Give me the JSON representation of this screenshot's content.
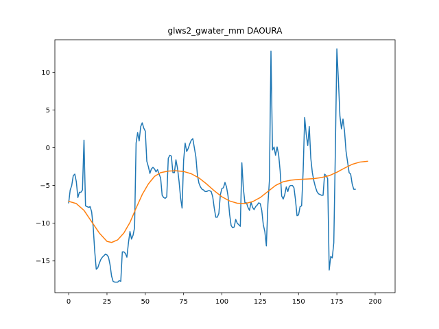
{
  "chart_data": {
    "type": "line",
    "title": "glws2_gwater_mm DAOURA",
    "xlabel": "",
    "ylabel": "",
    "xlim": [
      -9,
      213
    ],
    "ylim": [
      -19.2,
      14.3
    ],
    "x_ticks": [
      0,
      25,
      50,
      75,
      100,
      125,
      150,
      175,
      200
    ],
    "y_ticks": [
      -15,
      -10,
      -5,
      0,
      5,
      10
    ],
    "grid": false,
    "series": [
      {
        "color": "#1f77b4",
        "points": [
          [
            0,
            -7.3
          ],
          [
            1,
            -5.6
          ],
          [
            2,
            -5
          ],
          [
            3,
            -3.7
          ],
          [
            4,
            -3.5
          ],
          [
            5,
            -4.5
          ],
          [
            6,
            -6.6
          ],
          [
            7,
            -5.9
          ],
          [
            8,
            -5.9
          ],
          [
            9,
            -5.6
          ],
          [
            10,
            1
          ],
          [
            11,
            -7.7
          ],
          [
            12,
            -7.8
          ],
          [
            13,
            -7.9
          ],
          [
            14,
            -7.8
          ],
          [
            15,
            -8.5
          ],
          [
            16,
            -10.5
          ],
          [
            17,
            -13.7
          ],
          [
            18,
            -16.1
          ],
          [
            19,
            -15.9
          ],
          [
            20,
            -15.3
          ],
          [
            21,
            -14.8
          ],
          [
            22,
            -14.5
          ],
          [
            23,
            -14.3
          ],
          [
            24,
            -14.1
          ],
          [
            25,
            -14.2
          ],
          [
            26,
            -14.5
          ],
          [
            27,
            -15.5
          ],
          [
            28,
            -17
          ],
          [
            29,
            -17.7
          ],
          [
            30,
            -17.8
          ],
          [
            31,
            -17.8
          ],
          [
            32,
            -17.8
          ],
          [
            33,
            -17.6
          ],
          [
            34,
            -17.7
          ],
          [
            35,
            -13.8
          ],
          [
            36,
            -13.8
          ],
          [
            37,
            -14
          ],
          [
            38,
            -14.5
          ],
          [
            39,
            -12.6
          ],
          [
            40,
            -11.1
          ],
          [
            41,
            -12.1
          ],
          [
            42,
            -11.6
          ],
          [
            43,
            -10.6
          ],
          [
            44,
            0.6
          ],
          [
            45,
            2
          ],
          [
            46,
            0.9
          ],
          [
            47,
            2.8
          ],
          [
            48,
            3.3
          ],
          [
            49,
            2.6
          ],
          [
            50,
            2.2
          ],
          [
            51,
            -1.8
          ],
          [
            52,
            -2.5
          ],
          [
            53,
            -3.4
          ],
          [
            54,
            -2.8
          ],
          [
            55,
            -2.6
          ],
          [
            56,
            -2.8
          ],
          [
            57,
            -3.2
          ],
          [
            58,
            -2.9
          ],
          [
            59,
            -3.5
          ],
          [
            60,
            -4
          ],
          [
            61,
            -6.3
          ],
          [
            62,
            -6.6
          ],
          [
            63,
            -6.7
          ],
          [
            64,
            -6.5
          ],
          [
            65,
            -1.4
          ],
          [
            66,
            -1
          ],
          [
            67,
            -1.1
          ],
          [
            68,
            -3.3
          ],
          [
            69,
            -3.3
          ],
          [
            70,
            -1.6
          ],
          [
            71,
            -2.7
          ],
          [
            72,
            -4.4
          ],
          [
            73,
            -6.6
          ],
          [
            74,
            -8
          ],
          [
            75,
            -1.7
          ],
          [
            76,
            0.6
          ],
          [
            77,
            -0.5
          ],
          [
            78,
            -0.1
          ],
          [
            79,
            0.5
          ],
          [
            80,
            1
          ],
          [
            81,
            1.2
          ],
          [
            82,
            0
          ],
          [
            83,
            -1.2
          ],
          [
            84,
            -3.6
          ],
          [
            85,
            -4.7
          ],
          [
            86,
            -5.2
          ],
          [
            87,
            -5.5
          ],
          [
            88,
            -5.6
          ],
          [
            89,
            -5.8
          ],
          [
            90,
            -5.8
          ],
          [
            91,
            -5.7
          ],
          [
            92,
            -5.7
          ],
          [
            93,
            -5.8
          ],
          [
            94,
            -6.5
          ],
          [
            95,
            -8
          ],
          [
            96,
            -9.2
          ],
          [
            97,
            -9.2
          ],
          [
            98,
            -8.7
          ],
          [
            99,
            -6.2
          ],
          [
            100,
            -5.4
          ],
          [
            101,
            -5.3
          ],
          [
            102,
            -4.6
          ],
          [
            103,
            -5.2
          ],
          [
            104,
            -6.4
          ],
          [
            105,
            -8.8
          ],
          [
            106,
            -10.3
          ],
          [
            107,
            -10.6
          ],
          [
            108,
            -10.5
          ],
          [
            109,
            -9.5
          ],
          [
            110,
            -10
          ],
          [
            111,
            -10.2
          ],
          [
            112,
            -10.4
          ],
          [
            113,
            -2
          ],
          [
            114,
            -5.4
          ],
          [
            115,
            -7.3
          ],
          [
            116,
            -7.3
          ],
          [
            117,
            -7.9
          ],
          [
            118,
            -8.3
          ],
          [
            119,
            -7.2
          ],
          [
            120,
            -7.9
          ],
          [
            121,
            -8.2
          ],
          [
            122,
            -7.8
          ],
          [
            123,
            -7.6
          ],
          [
            124,
            -7.3
          ],
          [
            125,
            -7.4
          ],
          [
            126,
            -8.3
          ],
          [
            127,
            -10.2
          ],
          [
            128,
            -11.1
          ],
          [
            129,
            -13
          ],
          [
            130,
            -7.5
          ],
          [
            131,
            -4.3
          ],
          [
            132,
            12.8
          ],
          [
            133,
            -0.3
          ],
          [
            134,
            0.1
          ],
          [
            135,
            -1
          ],
          [
            136,
            0.1
          ],
          [
            137,
            -0.9
          ],
          [
            138,
            -3.1
          ],
          [
            139,
            -6.4
          ],
          [
            140,
            -6.8
          ],
          [
            141,
            -6.2
          ],
          [
            142,
            -5.2
          ],
          [
            143,
            -5.8
          ],
          [
            144,
            -5.1
          ],
          [
            145,
            -5
          ],
          [
            146,
            -5
          ],
          [
            147,
            -5.3
          ],
          [
            148,
            -6.9
          ],
          [
            149,
            -9
          ],
          [
            150,
            -8.9
          ],
          [
            151,
            -7.8
          ],
          [
            152,
            -7.7
          ],
          [
            153,
            -3.1
          ],
          [
            154,
            4
          ],
          [
            155,
            1.8
          ],
          [
            156,
            0.3
          ],
          [
            157,
            2.8
          ],
          [
            158,
            -1.4
          ],
          [
            159,
            -3.3
          ],
          [
            160,
            -4.4
          ],
          [
            161,
            -5.2
          ],
          [
            162,
            -5.8
          ],
          [
            163,
            -6.1
          ],
          [
            164,
            -6.2
          ],
          [
            165,
            -6.3
          ],
          [
            166,
            -6.3
          ],
          [
            167,
            -3.5
          ],
          [
            168,
            -3.7
          ],
          [
            169,
            -4.1
          ],
          [
            170,
            -16.2
          ],
          [
            171,
            -14.4
          ],
          [
            172,
            -14.6
          ],
          [
            173,
            -12.6
          ],
          [
            174,
            -0.6
          ],
          [
            175,
            13.1
          ],
          [
            176,
            9
          ],
          [
            177,
            4.2
          ],
          [
            178,
            2.5
          ],
          [
            179,
            3.8
          ],
          [
            180,
            2.2
          ],
          [
            181,
            -0.5
          ],
          [
            182,
            -1.9
          ],
          [
            183,
            -3.3
          ],
          [
            184,
            -3.5
          ],
          [
            185,
            -4.8
          ],
          [
            186,
            -5.5
          ],
          [
            187,
            -5.5
          ]
        ]
      },
      {
        "color": "#ff7f0e",
        "points": [
          [
            0,
            -7.1
          ],
          [
            5,
            -7.4
          ],
          [
            10,
            -8.3
          ],
          [
            15,
            -9.8
          ],
          [
            20,
            -11.3
          ],
          [
            25,
            -12.4
          ],
          [
            28,
            -12.55
          ],
          [
            32,
            -12.2
          ],
          [
            36,
            -11.3
          ],
          [
            40,
            -9.9
          ],
          [
            44,
            -8
          ],
          [
            48,
            -6.2
          ],
          [
            52,
            -4.8
          ],
          [
            56,
            -3.8
          ],
          [
            60,
            -3.3
          ],
          [
            65,
            -3.1
          ],
          [
            70,
            -3.05
          ],
          [
            75,
            -3.15
          ],
          [
            80,
            -3.45
          ],
          [
            85,
            -4
          ],
          [
            90,
            -4.8
          ],
          [
            95,
            -5.7
          ],
          [
            100,
            -6.5
          ],
          [
            105,
            -7.05
          ],
          [
            110,
            -7.35
          ],
          [
            115,
            -7.4
          ],
          [
            120,
            -7.15
          ],
          [
            125,
            -6.6
          ],
          [
            130,
            -5.8
          ],
          [
            135,
            -5
          ],
          [
            140,
            -4.5
          ],
          [
            145,
            -4.3
          ],
          [
            150,
            -4.2
          ],
          [
            155,
            -4.15
          ],
          [
            160,
            -4.1
          ],
          [
            165,
            -3.95
          ],
          [
            170,
            -3.7
          ],
          [
            175,
            -3.25
          ],
          [
            180,
            -2.7
          ],
          [
            185,
            -2.2
          ],
          [
            190,
            -1.9
          ],
          [
            195,
            -1.8
          ]
        ]
      }
    ]
  }
}
